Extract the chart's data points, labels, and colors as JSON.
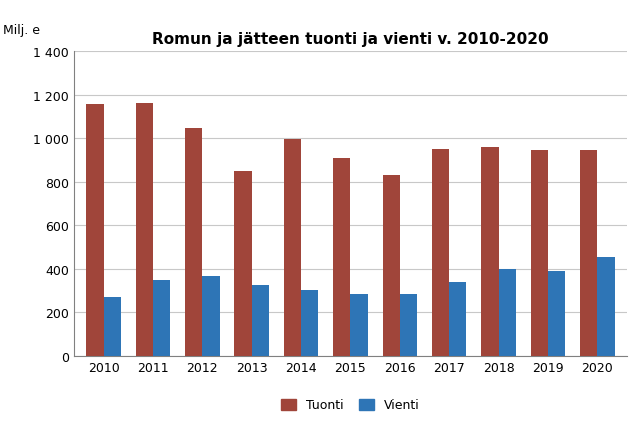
{
  "title": "Romun ja jätteen tuonti ja vienti v. 2010-2020",
  "ylabel": "Milj. e",
  "years": [
    2010,
    2011,
    2012,
    2013,
    2014,
    2015,
    2016,
    2017,
    2018,
    2019,
    2020
  ],
  "tuonti": [
    1155,
    1160,
    1048,
    848,
    998,
    910,
    830,
    952,
    960,
    948,
    948
  ],
  "vienti": [
    268,
    348,
    368,
    325,
    302,
    283,
    283,
    338,
    398,
    388,
    452
  ],
  "tuonti_color": "#a0453a",
  "vienti_color": "#2e75b6",
  "ylim": [
    0,
    1400
  ],
  "yticks": [
    0,
    200,
    400,
    600,
    800,
    1000,
    1200,
    1400
  ],
  "ytick_labels": [
    "0",
    "200",
    "400",
    "600",
    "800",
    "1 000",
    "1 200",
    "1 400"
  ],
  "bar_width": 0.35,
  "legend_labels": [
    "Tuonti",
    "Vienti"
  ],
  "background_color": "#ffffff",
  "grid_color": "#c8c8c8"
}
